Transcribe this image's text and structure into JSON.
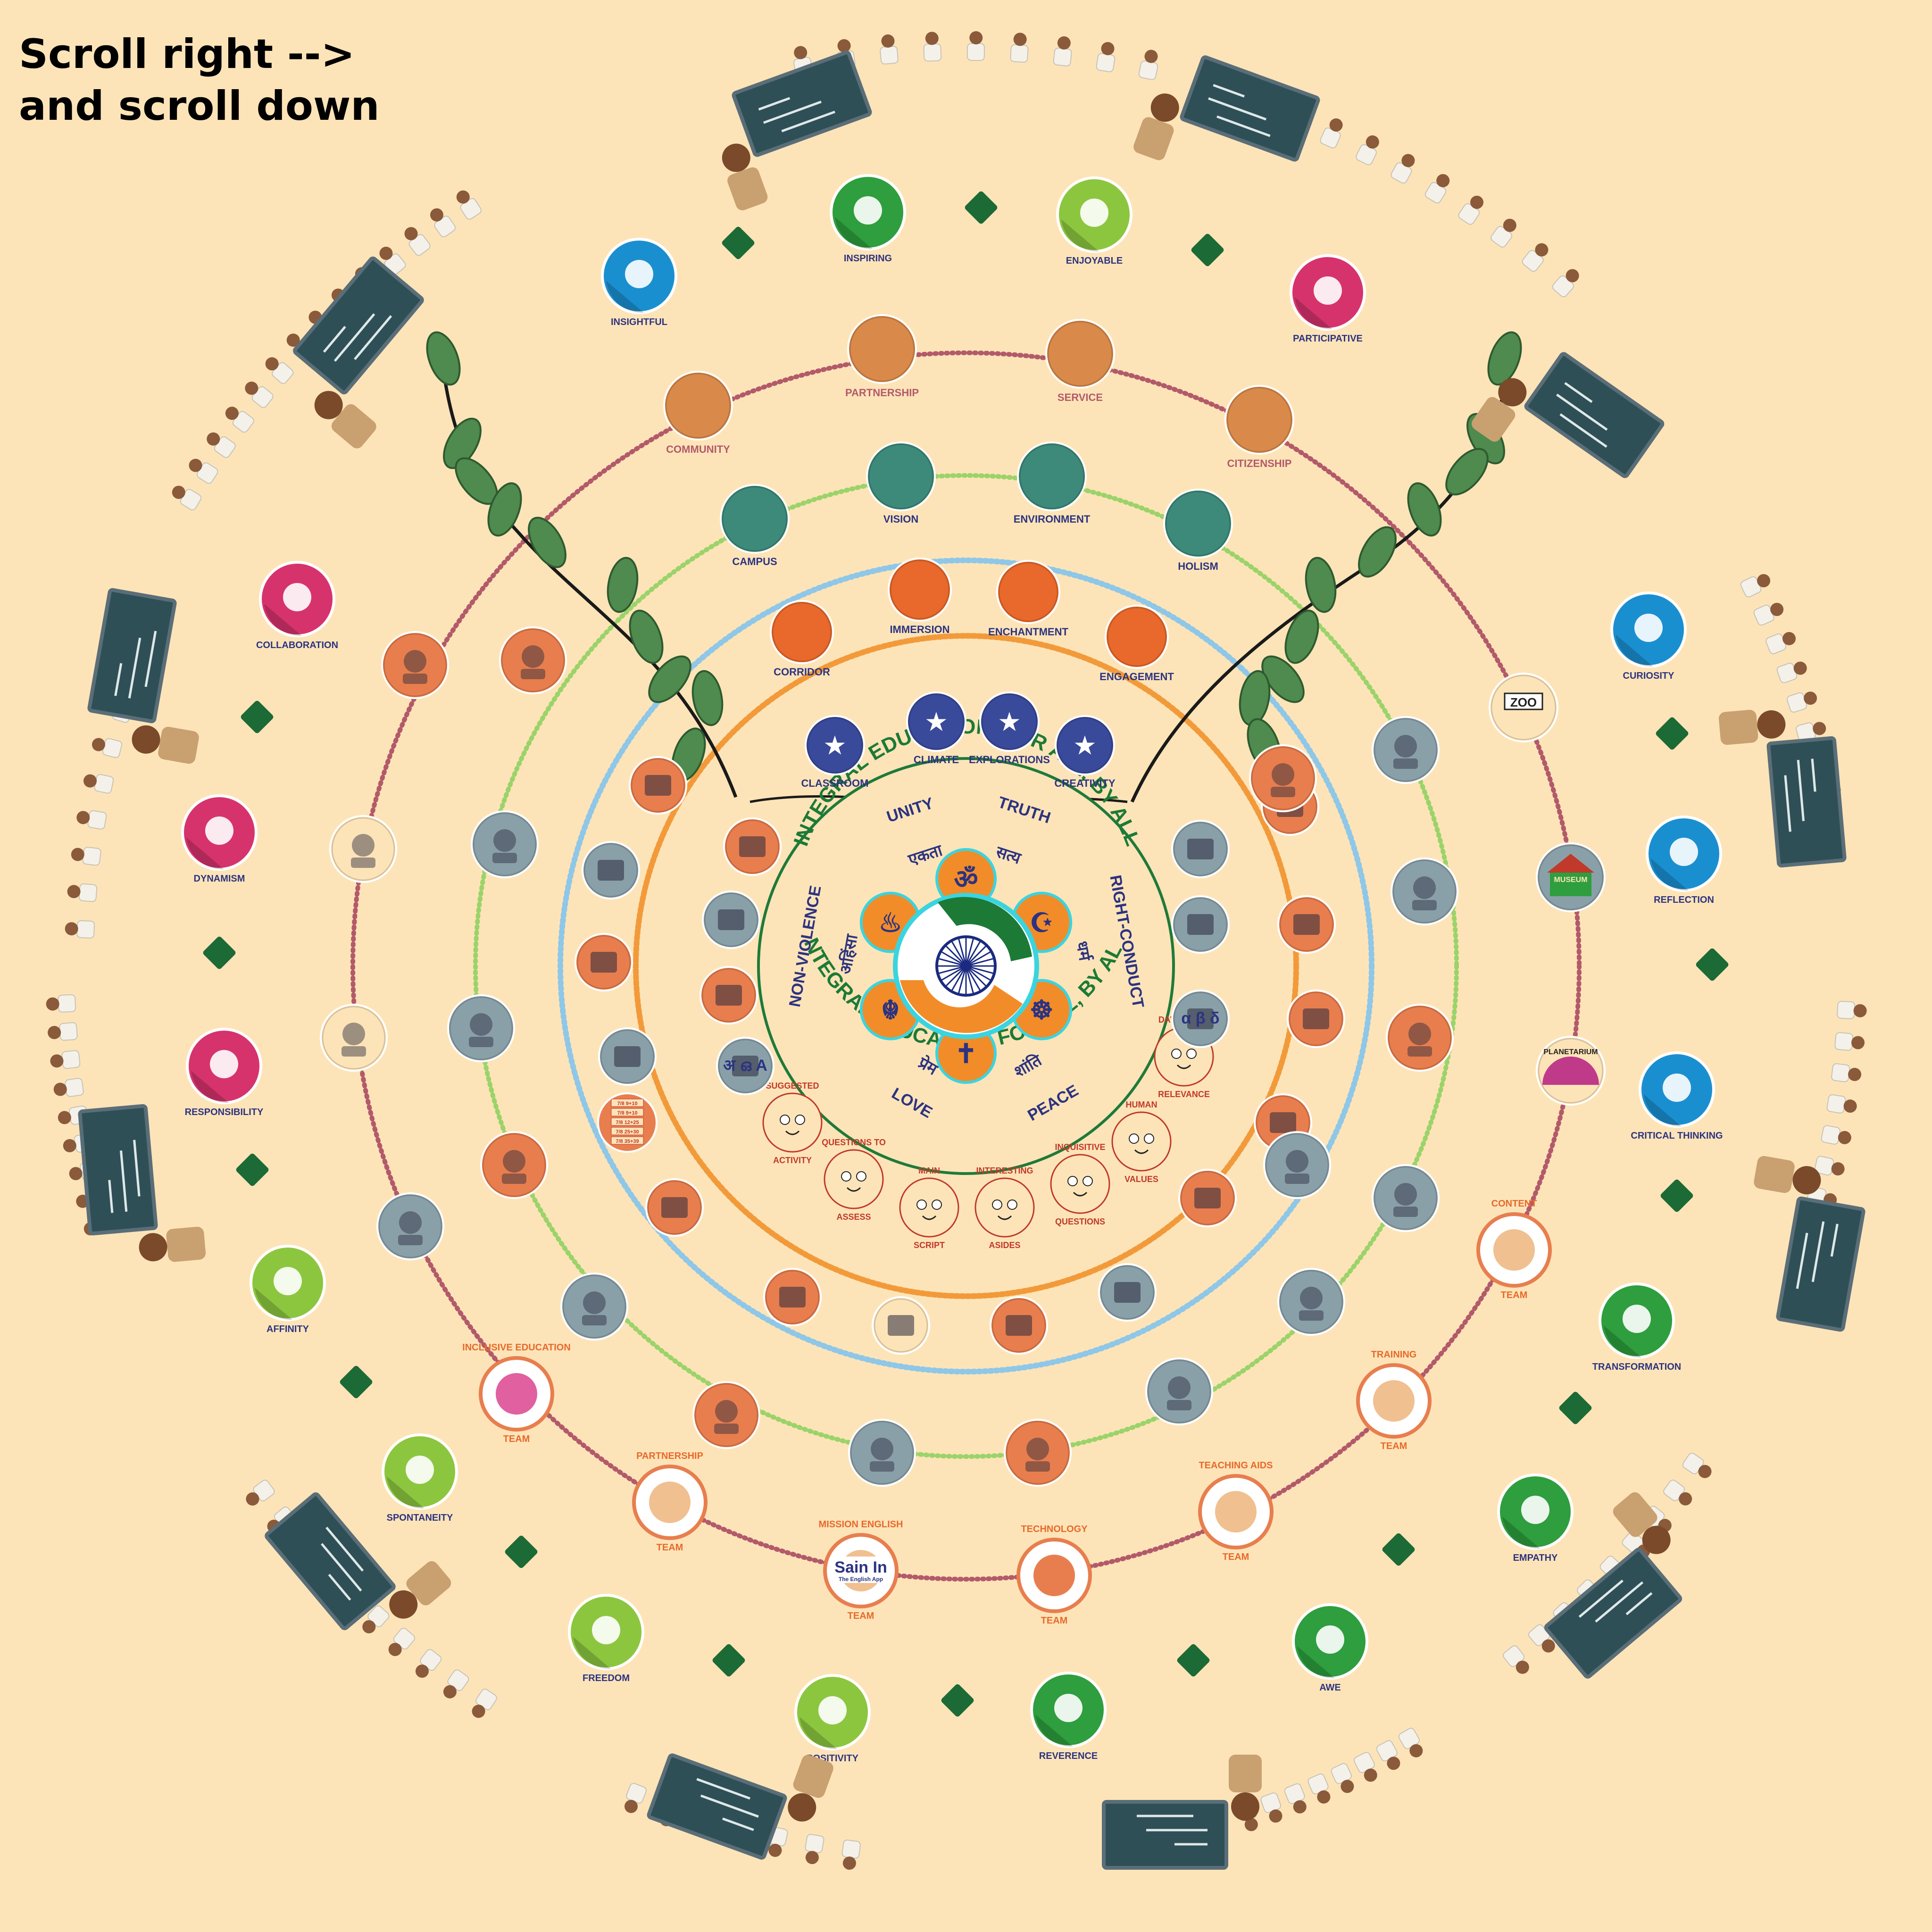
{
  "scroll_hint": {
    "line1": "Scroll right -->",
    "line2": "and scroll down"
  },
  "colors": {
    "background": "#fde4b8",
    "ring_outer": "#b25a6a",
    "ring_green": "#9bd36a",
    "ring_blue": "#8ec7e8",
    "ring_orange": "#f29a3a",
    "navy": "#2c3380",
    "saffron": "#f28c28",
    "india_green": "#1c7a36"
  },
  "center": {
    "title_top": "INTEGRAL EDUCATION, FOR ALL, BY ALL",
    "title_bottom": "INTEGRAL EDUCATION, FOR ALL, BY ALL",
    "values": [
      {
        "en": "UNITY",
        "hi": "एकता"
      },
      {
        "en": "TRUTH",
        "hi": "सत्य"
      },
      {
        "en": "RIGHT-CONDUCT",
        "hi": "धर्म"
      },
      {
        "en": "PEACE",
        "hi": "शांति"
      },
      {
        "en": "LOVE",
        "hi": "प्रेम"
      },
      {
        "en": "NON-VIOLENCE",
        "hi": "अहिंसा"
      }
    ],
    "petal_symbols": [
      "ॐ",
      "☪",
      "☸",
      "✝",
      "☬",
      "♨"
    ]
  },
  "inner_ring": [
    {
      "label": "CLASSROOM",
      "color": "#3a4a9a"
    },
    {
      "label": "CLIMATE",
      "color": "#3a4a9a"
    },
    {
      "label": "EXPLORATIONS",
      "color": "#3a4a9a"
    },
    {
      "label": "CREATIVITY",
      "color": "#3a4a9a"
    }
  ],
  "mascots": [
    {
      "top": "DAY-TO-DAY",
      "bottom": "RELEVANCE"
    },
    {
      "top": "HUMAN",
      "bottom": "VALUES"
    },
    {
      "top": "INQUISITIVE",
      "bottom": "QUESTIONS"
    },
    {
      "top": "INTERESTING",
      "bottom": "ASIDES"
    },
    {
      "top": "MAIN",
      "bottom": "SCRIPT"
    },
    {
      "top": "QUESTIONS TO",
      "bottom": "ASSESS"
    },
    {
      "top": "SUGGESTED",
      "bottom": "ACTIVITY"
    }
  ],
  "ring_orange_labeled": [
    {
      "label": "CORRIDOR"
    },
    {
      "label": "IMMERSION"
    },
    {
      "label": "ENCHANTMENT"
    },
    {
      "label": "ENGAGEMENT"
    }
  ],
  "ring_green_labeled": [
    {
      "label": "CAMPUS"
    },
    {
      "label": "VISION"
    },
    {
      "label": "ENVIRONMENT"
    },
    {
      "label": "HOLISM"
    }
  ],
  "ring_red_labeled": [
    {
      "label": "COMMUNITY"
    },
    {
      "label": "PARTNERSHIP"
    },
    {
      "label": "SERVICE"
    },
    {
      "label": "CITIZENSHIP"
    }
  ],
  "inner_icon_glyphs": {
    "alphabet": "अ ഒ A",
    "greek": "α β δ",
    "fractions": [
      "7/8 9+10",
      "7/8 9+10",
      "7/8 12+25",
      "7/8 25+30",
      "7/8 35+39"
    ]
  },
  "teams": [
    {
      "top": "CONTENT",
      "bottom": "TEAM"
    },
    {
      "top": "TRAINING",
      "bottom": "TEAM"
    },
    {
      "top": "TEACHING AIDS",
      "bottom": "TEAM"
    },
    {
      "top": "TECHNOLOGY",
      "bottom": "TEAM"
    },
    {
      "top": "MISSION ENGLISH",
      "bottom": "TEAM"
    },
    {
      "top": "PARTNERSHIP",
      "bottom": "TEAM"
    },
    {
      "top": "INCLUSIVE EDUCATION",
      "bottom": "TEAM"
    }
  ],
  "mission_english_app": {
    "name": "Sain In",
    "sub": "The English App"
  },
  "museum_label": "MUSEUM",
  "zoo_label": "ZOO",
  "planetarium_label": "PLANETARIUM",
  "outer_values": [
    {
      "label": "INSIGHTFUL",
      "color": "#1a8fd0"
    },
    {
      "label": "INSPIRING",
      "color": "#2e9e3e"
    },
    {
      "label": "ENJOYABLE",
      "color": "#8cc63f"
    },
    {
      "label": "PARTICIPATIVE",
      "color": "#d6336c"
    },
    {
      "label": "CURIOSITY",
      "color": "#1a8fd0"
    },
    {
      "label": "REFLECTION",
      "color": "#1a8fd0"
    },
    {
      "label": "CRITICAL THINKING",
      "color": "#1a8fd0"
    },
    {
      "label": "TRANSFORMATION",
      "color": "#2e9e3e"
    },
    {
      "label": "EMPATHY",
      "color": "#2e9e3e"
    },
    {
      "label": "AWE",
      "color": "#2e9e3e"
    },
    {
      "label": "REVERENCE",
      "color": "#2e9e3e"
    },
    {
      "label": "POSITIVITY",
      "color": "#8cc63f"
    },
    {
      "label": "FREEDOM",
      "color": "#8cc63f"
    },
    {
      "label": "SPONTANEITY",
      "color": "#8cc63f"
    },
    {
      "label": "AFFINITY",
      "color": "#8cc63f"
    },
    {
      "label": "RESPONSIBILITY",
      "color": "#d6336c"
    },
    {
      "label": "DYNAMISM",
      "color": "#d6336c"
    },
    {
      "label": "COLLABORATION",
      "color": "#d6336c"
    }
  ]
}
